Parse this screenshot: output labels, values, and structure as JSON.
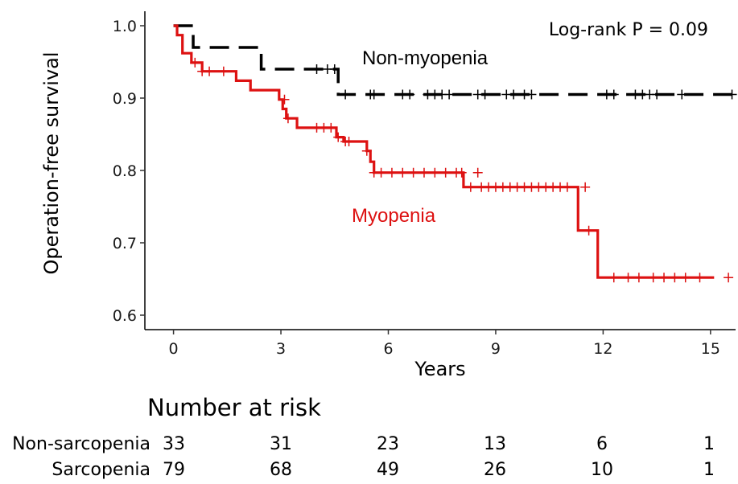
{
  "chart_data": {
    "type": "line",
    "subtype": "kaplan-meier",
    "xlabel": "Years",
    "ylabel": "Operation-free survival",
    "xlim": [
      -0.8,
      15.7
    ],
    "ylim": [
      0.58,
      1.02
    ],
    "xticks": [
      0,
      3,
      6,
      9,
      12,
      15
    ],
    "yticks": [
      0.6,
      0.7,
      0.8,
      0.9,
      1.0
    ],
    "ytick_labels": [
      "0.6",
      "0.7",
      "0.8",
      "0.9",
      "1.0"
    ],
    "grid": false,
    "annotation": "Log-rank P = 0.09",
    "series": [
      {
        "name": "Non-myopenia",
        "color": "#000000",
        "line_style": "dashed",
        "steps": [
          [
            0,
            1.0
          ],
          [
            0.55,
            0.97
          ],
          [
            2.45,
            0.94
          ],
          [
            4.6,
            0.905
          ],
          [
            15.7,
            0.905
          ]
        ],
        "censored": [
          [
            4.0,
            0.94
          ],
          [
            4.3,
            0.94
          ],
          [
            4.5,
            0.94
          ],
          [
            4.8,
            0.905
          ],
          [
            5.5,
            0.905
          ],
          [
            5.6,
            0.905
          ],
          [
            6.4,
            0.905
          ],
          [
            6.6,
            0.905
          ],
          [
            7.1,
            0.905
          ],
          [
            7.3,
            0.905
          ],
          [
            7.5,
            0.905
          ],
          [
            7.7,
            0.905
          ],
          [
            8.5,
            0.905
          ],
          [
            8.7,
            0.905
          ],
          [
            9.3,
            0.905
          ],
          [
            9.5,
            0.905
          ],
          [
            9.8,
            0.905
          ],
          [
            10.0,
            0.905
          ],
          [
            12.1,
            0.905
          ],
          [
            12.3,
            0.905
          ],
          [
            12.9,
            0.905
          ],
          [
            13.1,
            0.905
          ],
          [
            13.3,
            0.905
          ],
          [
            13.5,
            0.905
          ],
          [
            14.2,
            0.905
          ],
          [
            15.6,
            0.905
          ]
        ]
      },
      {
        "name": "Myopenia",
        "color": "#dd1111",
        "line_style": "solid",
        "steps": [
          [
            0,
            1.0
          ],
          [
            0.1,
            0.987
          ],
          [
            0.25,
            0.962
          ],
          [
            0.5,
            0.949
          ],
          [
            0.8,
            0.937
          ],
          [
            1.75,
            0.924
          ],
          [
            2.15,
            0.911
          ],
          [
            2.95,
            0.898
          ],
          [
            3.05,
            0.885
          ],
          [
            3.15,
            0.872
          ],
          [
            3.45,
            0.859
          ],
          [
            4.55,
            0.846
          ],
          [
            4.75,
            0.84
          ],
          [
            5.4,
            0.827
          ],
          [
            5.5,
            0.812
          ],
          [
            5.6,
            0.797
          ],
          [
            8.1,
            0.777
          ],
          [
            11.3,
            0.717
          ],
          [
            11.85,
            0.652
          ],
          [
            15.1,
            0.652
          ]
        ],
        "censored": [
          [
            0.6,
            0.949
          ],
          [
            0.8,
            0.937
          ],
          [
            1.0,
            0.937
          ],
          [
            1.4,
            0.937
          ],
          [
            3.1,
            0.898
          ],
          [
            3.2,
            0.872
          ],
          [
            4.0,
            0.859
          ],
          [
            4.2,
            0.859
          ],
          [
            4.4,
            0.859
          ],
          [
            4.6,
            0.846
          ],
          [
            4.8,
            0.84
          ],
          [
            4.9,
            0.84
          ],
          [
            5.4,
            0.827
          ],
          [
            5.6,
            0.797
          ],
          [
            5.8,
            0.797
          ],
          [
            6.1,
            0.797
          ],
          [
            6.4,
            0.797
          ],
          [
            6.7,
            0.797
          ],
          [
            7.0,
            0.797
          ],
          [
            7.3,
            0.797
          ],
          [
            7.6,
            0.797
          ],
          [
            7.9,
            0.797
          ],
          [
            8.05,
            0.797
          ],
          [
            8.5,
            0.797
          ],
          [
            8.3,
            0.777
          ],
          [
            8.6,
            0.777
          ],
          [
            8.8,
            0.777
          ],
          [
            9.0,
            0.777
          ],
          [
            9.2,
            0.777
          ],
          [
            9.4,
            0.777
          ],
          [
            9.6,
            0.777
          ],
          [
            9.8,
            0.777
          ],
          [
            10.0,
            0.777
          ],
          [
            10.2,
            0.777
          ],
          [
            10.4,
            0.777
          ],
          [
            10.6,
            0.777
          ],
          [
            10.8,
            0.777
          ],
          [
            11.0,
            0.777
          ],
          [
            11.5,
            0.777
          ],
          [
            11.6,
            0.717
          ],
          [
            12.3,
            0.652
          ],
          [
            12.7,
            0.652
          ],
          [
            13.0,
            0.652
          ],
          [
            13.4,
            0.652
          ],
          [
            13.7,
            0.652
          ],
          [
            14.0,
            0.652
          ],
          [
            14.3,
            0.652
          ],
          [
            14.7,
            0.652
          ],
          [
            15.5,
            0.652
          ]
        ]
      }
    ],
    "series_labels": {
      "non_myopenia": "Non-myopenia",
      "myopenia": "Myopenia"
    },
    "risk_table": {
      "title": "Number at risk",
      "times": [
        0,
        3,
        6,
        9,
        12,
        15
      ],
      "rows": [
        {
          "name": "Non-sarcopenia",
          "values": [
            "33",
            "31",
            "23",
            "13",
            "6",
            "1"
          ]
        },
        {
          "name": "Sarcopenia",
          "values": [
            "79",
            "68",
            "49",
            "26",
            "10",
            "1"
          ]
        }
      ]
    }
  }
}
